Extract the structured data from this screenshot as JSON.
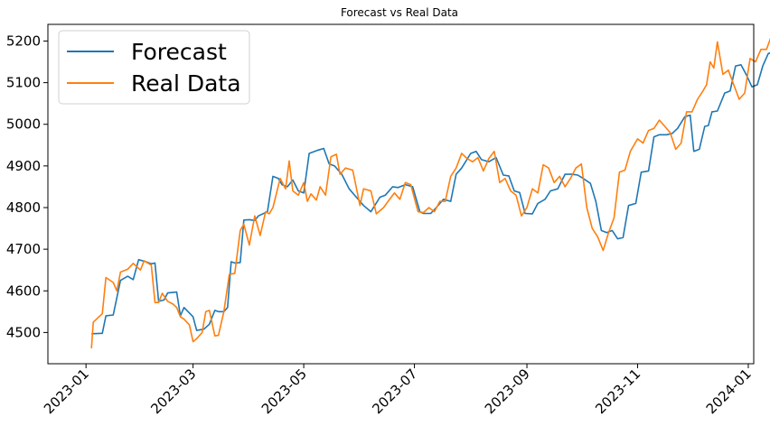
{
  "chart_data": {
    "type": "line",
    "title": "Forecast vs Real Data",
    "xlabel": "",
    "ylabel": "",
    "xlim": [
      "2022-12-11",
      "2024-01-04"
    ],
    "ylim": [
      4425,
      5240
    ],
    "x_ticks": [
      "2023-01",
      "2023-03",
      "2023-05",
      "2023-07",
      "2023-09",
      "2023-11",
      "2024-01"
    ],
    "x_tick_dates": [
      "2023-01-01",
      "2023-03-01",
      "2023-05-01",
      "2023-07-01",
      "2023-09-01",
      "2023-11-01",
      "2024-01-01"
    ],
    "y_ticks": [
      4500,
      4600,
      4700,
      4800,
      4900,
      5000,
      5100,
      5200
    ],
    "grid": false,
    "legend_position": "top-left",
    "series": [
      {
        "name": "Forecast",
        "color": "#1f77b4",
        "points": [
          [
            "2023-01-04",
            4497
          ],
          [
            "2023-01-10",
            4498
          ],
          [
            "2023-01-12",
            4540
          ],
          [
            "2023-01-16",
            4542
          ],
          [
            "2023-01-20",
            4625
          ],
          [
            "2023-01-24",
            4635
          ],
          [
            "2023-01-27",
            4627
          ],
          [
            "2023-01-30",
            4675
          ],
          [
            "2023-02-03",
            4670
          ],
          [
            "2023-02-06",
            4665
          ],
          [
            "2023-02-08",
            4667
          ],
          [
            "2023-02-10",
            4575
          ],
          [
            "2023-02-13",
            4578
          ],
          [
            "2023-02-15",
            4595
          ],
          [
            "2023-02-20",
            4597
          ],
          [
            "2023-02-22",
            4540
          ],
          [
            "2023-02-24",
            4560
          ],
          [
            "2023-03-01",
            4538
          ],
          [
            "2023-03-03",
            4505
          ],
          [
            "2023-03-07",
            4508
          ],
          [
            "2023-03-10",
            4520
          ],
          [
            "2023-03-13",
            4553
          ],
          [
            "2023-03-15",
            4550
          ],
          [
            "2023-03-18",
            4550
          ],
          [
            "2023-03-20",
            4560
          ],
          [
            "2023-03-22",
            4670
          ],
          [
            "2023-03-24",
            4667
          ],
          [
            "2023-03-27",
            4668
          ],
          [
            "2023-03-29",
            4770
          ],
          [
            "2023-04-01",
            4771
          ],
          [
            "2023-04-04",
            4769
          ],
          [
            "2023-04-06",
            4780
          ],
          [
            "2023-04-11",
            4790
          ],
          [
            "2023-04-14",
            4875
          ],
          [
            "2023-04-17",
            4870
          ],
          [
            "2023-04-19",
            4855
          ],
          [
            "2023-04-22",
            4850
          ],
          [
            "2023-04-25",
            4866
          ],
          [
            "2023-04-28",
            4840
          ],
          [
            "2023-05-01",
            4835
          ],
          [
            "2023-05-04",
            4930
          ],
          [
            "2023-05-09",
            4938
          ],
          [
            "2023-05-12",
            4942
          ],
          [
            "2023-05-15",
            4905
          ],
          [
            "2023-05-18",
            4900
          ],
          [
            "2023-05-22",
            4880
          ],
          [
            "2023-05-26",
            4845
          ],
          [
            "2023-05-30",
            4825
          ],
          [
            "2023-06-03",
            4805
          ],
          [
            "2023-06-07",
            4790
          ],
          [
            "2023-06-12",
            4825
          ],
          [
            "2023-06-15",
            4830
          ],
          [
            "2023-06-19",
            4850
          ],
          [
            "2023-06-22",
            4848
          ],
          [
            "2023-06-26",
            4855
          ],
          [
            "2023-06-30",
            4850
          ],
          [
            "2023-07-04",
            4790
          ],
          [
            "2023-07-06",
            4786
          ],
          [
            "2023-07-10",
            4786
          ],
          [
            "2023-07-13",
            4800
          ],
          [
            "2023-07-17",
            4820
          ],
          [
            "2023-07-21",
            4815
          ],
          [
            "2023-07-24",
            4880
          ],
          [
            "2023-07-27",
            4895
          ],
          [
            "2023-08-01",
            4930
          ],
          [
            "2023-08-04",
            4935
          ],
          [
            "2023-08-07",
            4915
          ],
          [
            "2023-08-11",
            4910
          ],
          [
            "2023-08-15",
            4920
          ],
          [
            "2023-08-19",
            4878
          ],
          [
            "2023-08-22",
            4876
          ],
          [
            "2023-08-25",
            4840
          ],
          [
            "2023-08-28",
            4836
          ],
          [
            "2023-08-31",
            4786
          ],
          [
            "2023-09-04",
            4785
          ],
          [
            "2023-09-07",
            4810
          ],
          [
            "2023-09-11",
            4820
          ],
          [
            "2023-09-14",
            4840
          ],
          [
            "2023-09-18",
            4845
          ],
          [
            "2023-09-22",
            4880
          ],
          [
            "2023-09-26",
            4880
          ],
          [
            "2023-09-29",
            4878
          ],
          [
            "2023-10-02",
            4870
          ],
          [
            "2023-10-06",
            4858
          ],
          [
            "2023-10-09",
            4815
          ],
          [
            "2023-10-12",
            4745
          ],
          [
            "2023-10-15",
            4740
          ],
          [
            "2023-10-18",
            4745
          ],
          [
            "2023-10-21",
            4725
          ],
          [
            "2023-10-24",
            4728
          ],
          [
            "2023-10-27",
            4805
          ],
          [
            "2023-10-31",
            4810
          ],
          [
            "2023-11-03",
            4885
          ],
          [
            "2023-11-07",
            4888
          ],
          [
            "2023-11-10",
            4970
          ],
          [
            "2023-11-13",
            4975
          ],
          [
            "2023-11-17",
            4975
          ],
          [
            "2023-11-20",
            4978
          ],
          [
            "2023-11-23",
            4990
          ],
          [
            "2023-11-27",
            5018
          ],
          [
            "2023-11-30",
            5022
          ],
          [
            "2023-12-02",
            4935
          ],
          [
            "2023-12-05",
            4940
          ],
          [
            "2023-12-08",
            4995
          ],
          [
            "2023-12-10",
            4997
          ],
          [
            "2023-12-12",
            5030
          ],
          [
            "2023-12-15",
            5032
          ],
          [
            "2023-12-19",
            5075
          ],
          [
            "2023-12-22",
            5080
          ],
          [
            "2023-12-25",
            5140
          ],
          [
            "2023-12-28",
            5143
          ],
          [
            "2023-12-31",
            5118
          ],
          [
            "2024-01-03",
            5090
          ],
          [
            "2024-01-06",
            5095
          ],
          [
            "2024-01-09",
            5140
          ],
          [
            "2024-01-12",
            5170
          ],
          [
            "2024-01-14",
            5172
          ]
        ]
      },
      {
        "name": "Real Data",
        "color": "#ff7f0e",
        "points": [
          [
            "2023-01-04",
            4462
          ],
          [
            "2023-01-05",
            4525
          ],
          [
            "2023-01-10",
            4545
          ],
          [
            "2023-01-12",
            4632
          ],
          [
            "2023-01-16",
            4620
          ],
          [
            "2023-01-18",
            4600
          ],
          [
            "2023-01-20",
            4645
          ],
          [
            "2023-01-24",
            4652
          ],
          [
            "2023-01-27",
            4666
          ],
          [
            "2023-01-31",
            4650
          ],
          [
            "2023-02-02",
            4672
          ],
          [
            "2023-02-06",
            4662
          ],
          [
            "2023-02-08",
            4572
          ],
          [
            "2023-02-10",
            4572
          ],
          [
            "2023-02-12",
            4594
          ],
          [
            "2023-02-15",
            4575
          ],
          [
            "2023-02-18",
            4568
          ],
          [
            "2023-02-20",
            4560
          ],
          [
            "2023-02-22",
            4538
          ],
          [
            "2023-02-24",
            4532
          ],
          [
            "2023-02-27",
            4518
          ],
          [
            "2023-03-01",
            4478
          ],
          [
            "2023-03-03",
            4485
          ],
          [
            "2023-03-06",
            4500
          ],
          [
            "2023-03-08",
            4550
          ],
          [
            "2023-03-10",
            4553
          ],
          [
            "2023-03-13",
            4492
          ],
          [
            "2023-03-15",
            4493
          ],
          [
            "2023-03-18",
            4550
          ],
          [
            "2023-03-21",
            4640
          ],
          [
            "2023-03-24",
            4642
          ],
          [
            "2023-03-27",
            4745
          ],
          [
            "2023-03-29",
            4760
          ],
          [
            "2023-04-01",
            4710
          ],
          [
            "2023-04-04",
            4780
          ],
          [
            "2023-04-07",
            4733
          ],
          [
            "2023-04-10",
            4790
          ],
          [
            "2023-04-12",
            4785
          ],
          [
            "2023-04-14",
            4800
          ],
          [
            "2023-04-18",
            4870
          ],
          [
            "2023-04-21",
            4845
          ],
          [
            "2023-04-23",
            4912
          ],
          [
            "2023-04-25",
            4840
          ],
          [
            "2023-04-28",
            4830
          ],
          [
            "2023-05-01",
            4860
          ],
          [
            "2023-05-03",
            4815
          ],
          [
            "2023-05-05",
            4833
          ],
          [
            "2023-05-08",
            4818
          ],
          [
            "2023-05-10",
            4850
          ],
          [
            "2023-05-13",
            4830
          ],
          [
            "2023-05-16",
            4922
          ],
          [
            "2023-05-19",
            4928
          ],
          [
            "2023-05-21",
            4880
          ],
          [
            "2023-05-24",
            4895
          ],
          [
            "2023-05-28",
            4890
          ],
          [
            "2023-06-01",
            4805
          ],
          [
            "2023-06-03",
            4845
          ],
          [
            "2023-06-07",
            4840
          ],
          [
            "2023-06-10",
            4785
          ],
          [
            "2023-06-14",
            4800
          ],
          [
            "2023-06-17",
            4818
          ],
          [
            "2023-06-20",
            4835
          ],
          [
            "2023-06-23",
            4820
          ],
          [
            "2023-06-26",
            4860
          ],
          [
            "2023-06-29",
            4855
          ],
          [
            "2023-07-03",
            4790
          ],
          [
            "2023-07-06",
            4788
          ],
          [
            "2023-07-09",
            4800
          ],
          [
            "2023-07-12",
            4790
          ],
          [
            "2023-07-15",
            4815
          ],
          [
            "2023-07-18",
            4815
          ],
          [
            "2023-07-21",
            4875
          ],
          [
            "2023-07-24",
            4895
          ],
          [
            "2023-07-27",
            4930
          ],
          [
            "2023-07-30",
            4918
          ],
          [
            "2023-08-02",
            4910
          ],
          [
            "2023-08-05",
            4920
          ],
          [
            "2023-08-08",
            4888
          ],
          [
            "2023-08-11",
            4918
          ],
          [
            "2023-08-14",
            4935
          ],
          [
            "2023-08-17",
            4860
          ],
          [
            "2023-08-20",
            4870
          ],
          [
            "2023-08-23",
            4840
          ],
          [
            "2023-08-26",
            4830
          ],
          [
            "2023-08-29",
            4780
          ],
          [
            "2023-09-01",
            4800
          ],
          [
            "2023-09-04",
            4845
          ],
          [
            "2023-09-07",
            4835
          ],
          [
            "2023-09-10",
            4903
          ],
          [
            "2023-09-13",
            4895
          ],
          [
            "2023-09-16",
            4860
          ],
          [
            "2023-09-19",
            4875
          ],
          [
            "2023-09-22",
            4850
          ],
          [
            "2023-09-25",
            4870
          ],
          [
            "2023-09-28",
            4895
          ],
          [
            "2023-10-01",
            4905
          ],
          [
            "2023-10-04",
            4800
          ],
          [
            "2023-10-07",
            4750
          ],
          [
            "2023-10-10",
            4730
          ],
          [
            "2023-10-13",
            4697
          ],
          [
            "2023-10-16",
            4740
          ],
          [
            "2023-10-19",
            4775
          ],
          [
            "2023-10-22",
            4885
          ],
          [
            "2023-10-25",
            4890
          ],
          [
            "2023-10-28",
            4935
          ],
          [
            "2023-11-01",
            4965
          ],
          [
            "2023-11-04",
            4955
          ],
          [
            "2023-11-07",
            4985
          ],
          [
            "2023-11-10",
            4990
          ],
          [
            "2023-11-13",
            5010
          ],
          [
            "2023-11-16",
            4995
          ],
          [
            "2023-11-19",
            4980
          ],
          [
            "2023-11-22",
            4940
          ],
          [
            "2023-11-25",
            4955
          ],
          [
            "2023-11-28",
            5030
          ],
          [
            "2023-12-01",
            5030
          ],
          [
            "2023-12-04",
            5060
          ],
          [
            "2023-12-07",
            5080
          ],
          [
            "2023-12-09",
            5095
          ],
          [
            "2023-12-11",
            5150
          ],
          [
            "2023-12-13",
            5135
          ],
          [
            "2023-12-15",
            5198
          ],
          [
            "2023-12-18",
            5120
          ],
          [
            "2023-12-21",
            5130
          ],
          [
            "2023-12-24",
            5095
          ],
          [
            "2023-12-27",
            5060
          ],
          [
            "2023-12-30",
            5075
          ],
          [
            "2024-01-02",
            5158
          ],
          [
            "2024-01-05",
            5150
          ],
          [
            "2024-01-08",
            5180
          ],
          [
            "2024-01-11",
            5180
          ],
          [
            "2024-01-14",
            5215
          ]
        ]
      }
    ]
  }
}
